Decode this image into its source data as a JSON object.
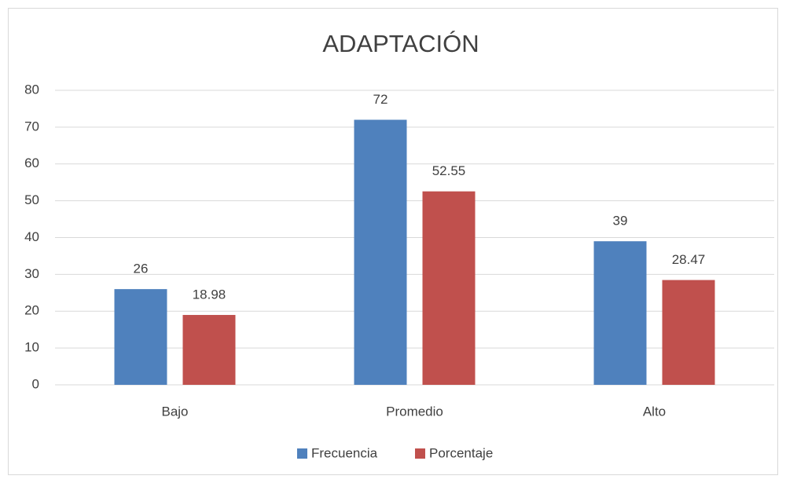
{
  "chart_data": {
    "type": "bar",
    "title": "ADAPTACIÓN",
    "categories": [
      "Bajo",
      "Promedio",
      "Alto"
    ],
    "series": [
      {
        "name": "Frecuencia",
        "color": "#4f81bd",
        "values": [
          26,
          72,
          39
        ]
      },
      {
        "name": "Porcentaje",
        "color": "#c0504d",
        "values": [
          18.98,
          52.55,
          28.47
        ]
      }
    ],
    "ylim": [
      0,
      80
    ],
    "yticks": [
      0,
      10,
      20,
      30,
      40,
      50,
      60,
      70,
      80
    ],
    "grid": true,
    "legend": "bottom"
  }
}
